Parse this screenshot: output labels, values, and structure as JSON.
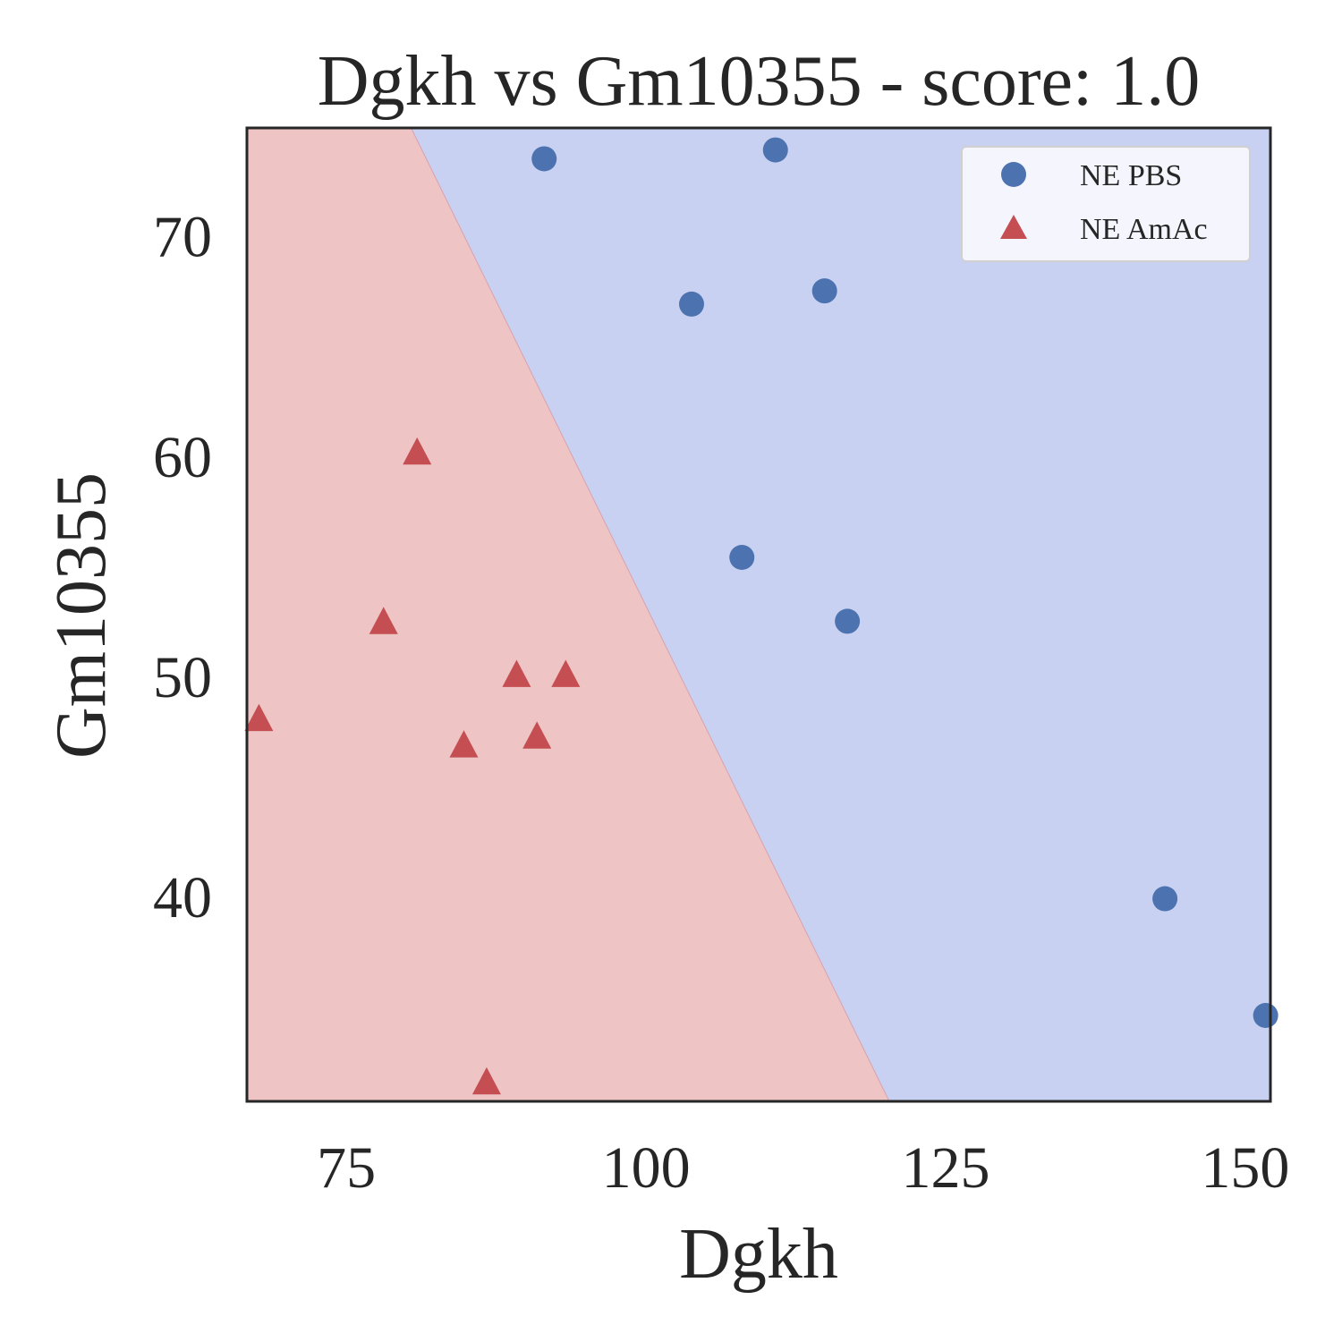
{
  "chart_data": {
    "type": "scatter",
    "title": "Dgkh vs Gm10355 - score: 1.0",
    "xlabel": "Dgkh",
    "ylabel": "Gm10355",
    "xlim": [
      66.7,
      152.1
    ],
    "ylim": [
      30.7,
      74.9
    ],
    "xticks": [
      75,
      100,
      125,
      150
    ],
    "yticks": [
      40,
      50,
      60,
      70
    ],
    "grid": false,
    "legend_position": "top-right",
    "decision_boundary": {
      "points": [
        [
          80.4,
          74.9
        ],
        [
          120.3,
          30.7
        ]
      ],
      "left_region_class": "NE AmAc",
      "right_region_class": "NE PBS",
      "left_color": "#eec4c4",
      "right_color": "#c8d1f1"
    },
    "series": [
      {
        "name": "NE PBS",
        "marker": "circle",
        "color": "#4c72b0",
        "points": [
          [
            91.5,
            73.5
          ],
          [
            110.8,
            73.9
          ],
          [
            103.8,
            66.9
          ],
          [
            114.9,
            67.5
          ],
          [
            108.0,
            55.4
          ],
          [
            116.8,
            52.5
          ],
          [
            143.3,
            39.9
          ],
          [
            151.7,
            34.6
          ]
        ]
      },
      {
        "name": "NE AmAc",
        "marker": "triangle",
        "color": "#c44e52",
        "points": [
          [
            80.9,
            60.2
          ],
          [
            78.1,
            52.5
          ],
          [
            89.2,
            50.1
          ],
          [
            93.3,
            50.1
          ],
          [
            67.7,
            48.1
          ],
          [
            84.8,
            46.9
          ],
          [
            90.9,
            47.3
          ],
          [
            86.7,
            31.6
          ]
        ]
      }
    ]
  }
}
